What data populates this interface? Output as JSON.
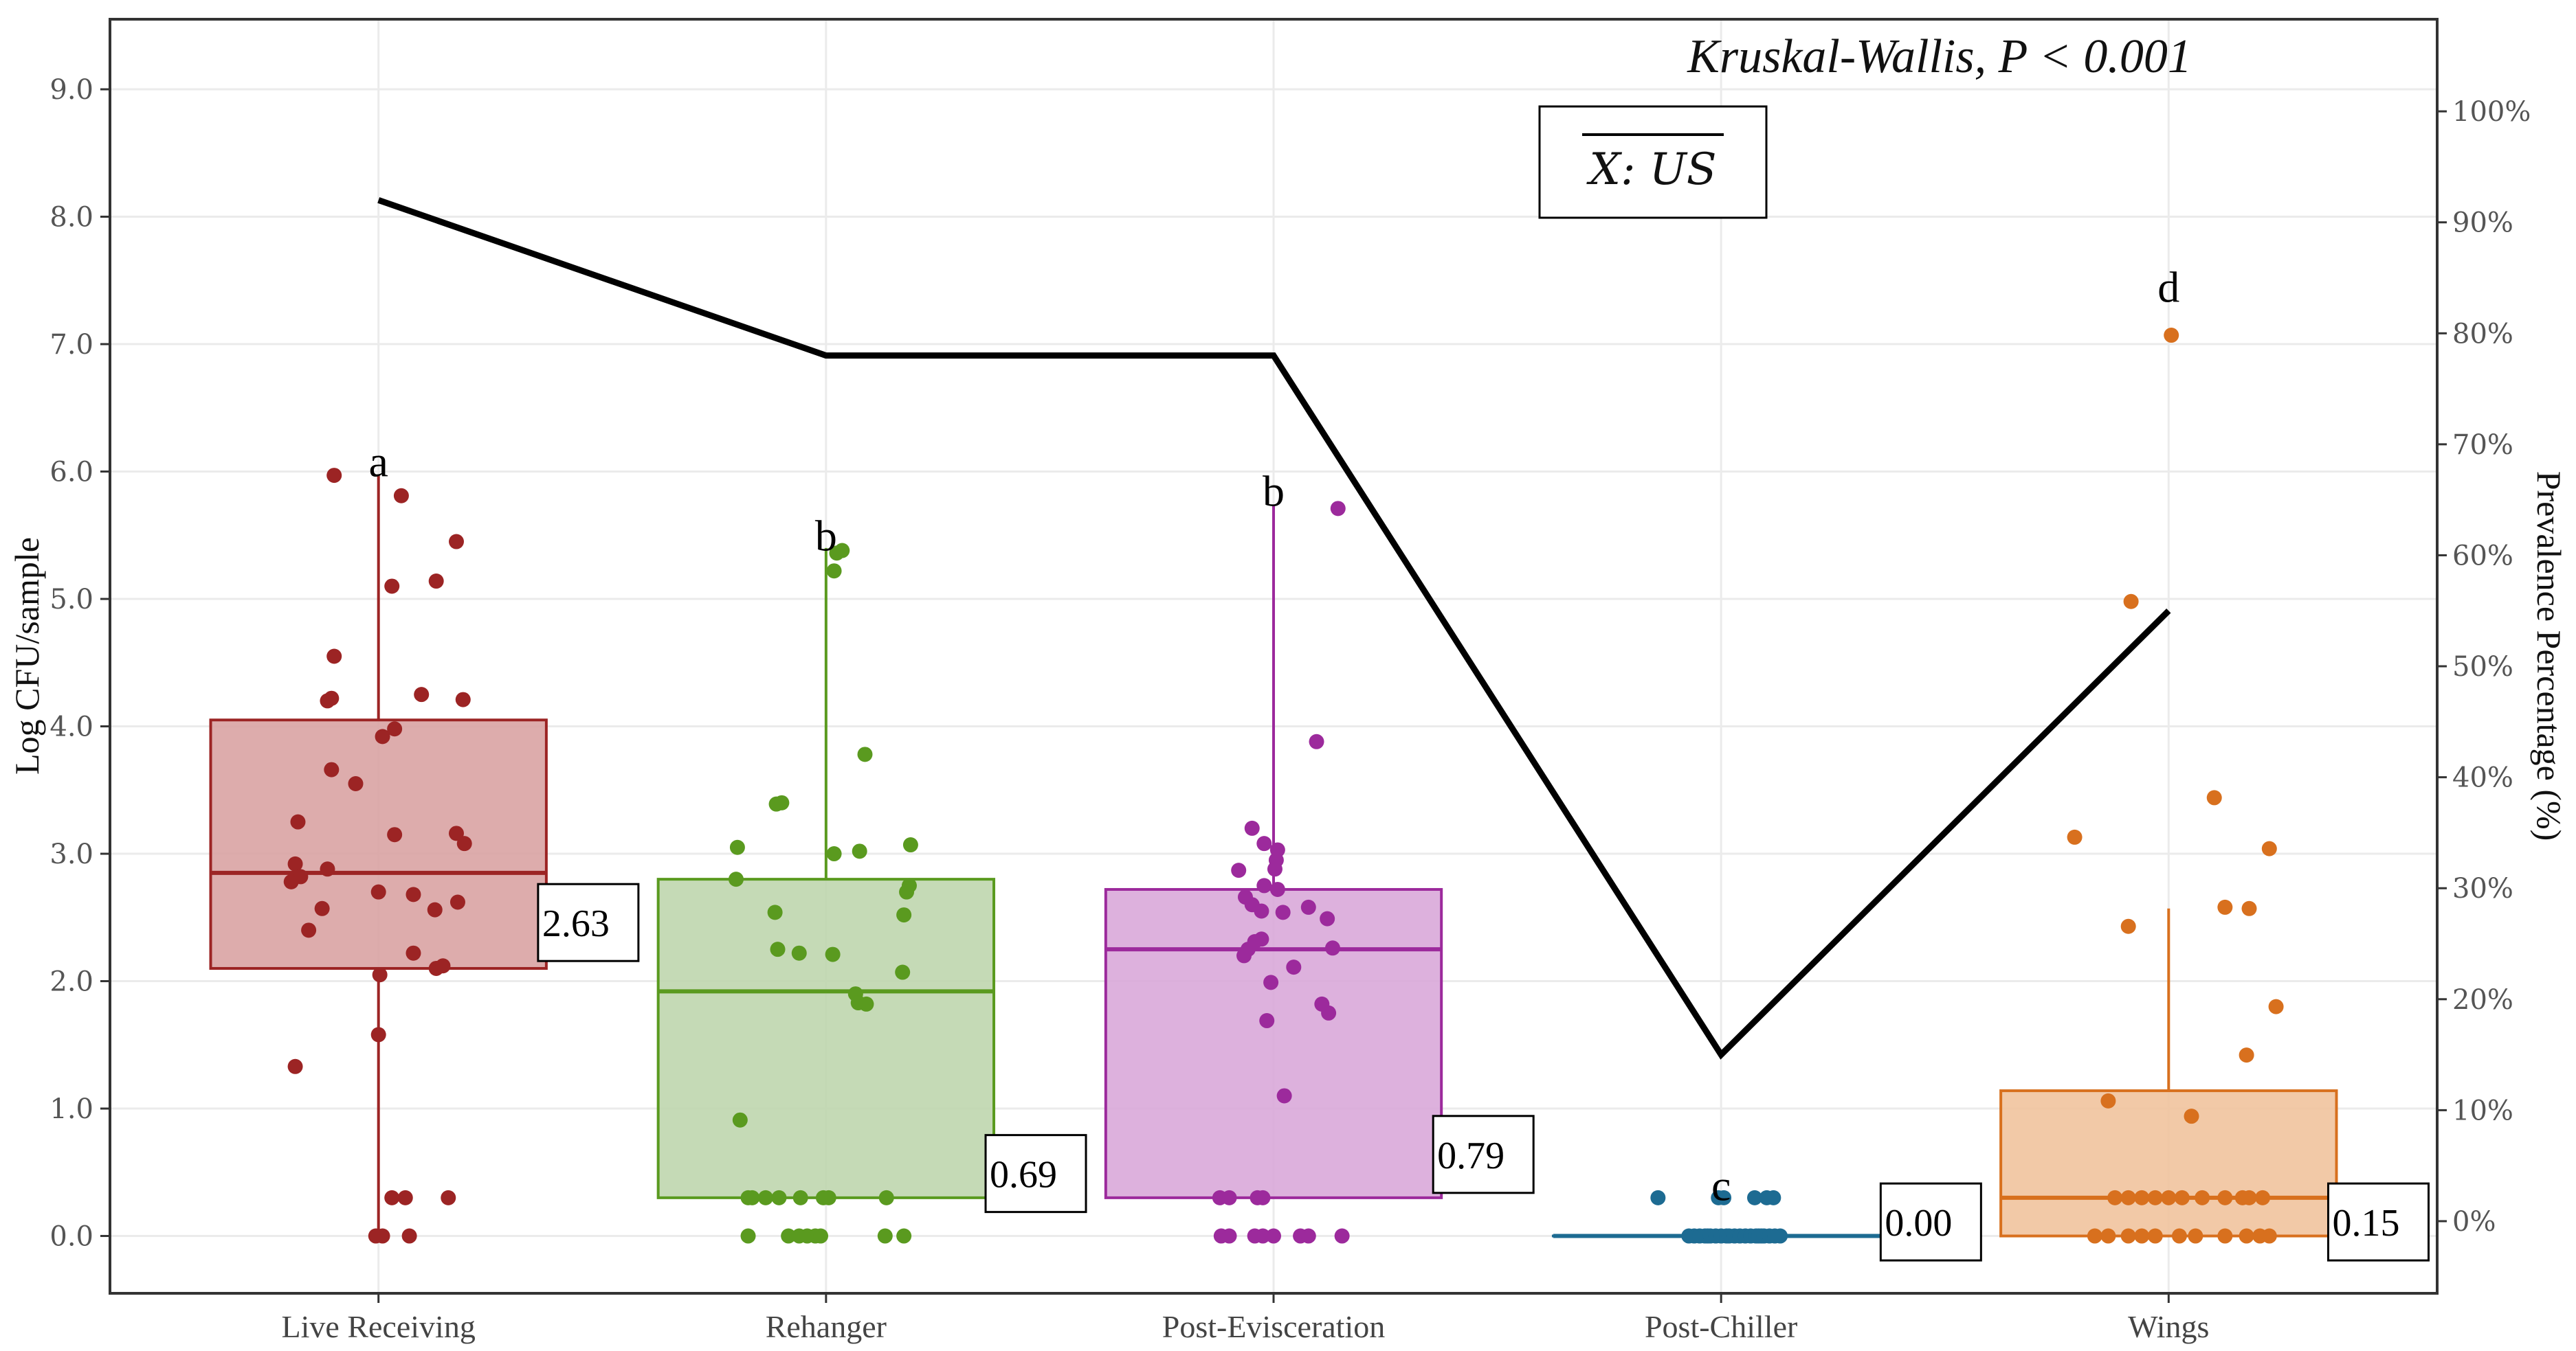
{
  "chart_data": {
    "type": "box",
    "y_left": {
      "label": "Log CFU/sample",
      "lim": [
        -0.45,
        9.55
      ],
      "ticks": [
        "0.0",
        "1.0",
        "2.0",
        "3.0",
        "4.0",
        "5.0",
        "6.0",
        "7.0",
        "8.0",
        "9.0"
      ]
    },
    "y_right": {
      "label": "Prevalence Percentage (%)",
      "lim": [
        -6.5,
        108.3
      ],
      "ticks": [
        "0%",
        "10%",
        "20%",
        "30%",
        "40%",
        "50%",
        "60%",
        "70%",
        "80%",
        "90%",
        "100%"
      ]
    },
    "categories": [
      "Live Receiving",
      "Rehanger",
      "Post-Evisceration",
      "Post-Chiller",
      "Wings"
    ],
    "colors": [
      "#9c2424",
      "#5a9a1f",
      "#9c2a9c",
      "#1d6b92",
      "#d8701e"
    ],
    "fills": [
      "#d9a3a3",
      "#bfd6ae",
      "#d9a9d9",
      "#b3d2e1",
      "#f1c39d"
    ],
    "boxes": [
      {
        "q1": 2.1,
        "median": 2.85,
        "q3": 4.05,
        "whisker_low": 0.0,
        "whisker_high": 5.97
      },
      {
        "q1": 0.3,
        "median": 1.92,
        "q3": 2.8,
        "whisker_low": 0.3,
        "whisker_high": 5.4
      },
      {
        "q1": 0.3,
        "median": 2.25,
        "q3": 2.72,
        "whisker_low": 0.3,
        "whisker_high": 5.73
      },
      {
        "q1": 0.0,
        "median": 0.0,
        "q3": 0.0,
        "whisker_low": 0.0,
        "whisker_high": 0.0
      },
      {
        "q1": 0.0,
        "median": 0.3,
        "q3": 1.14,
        "whisker_low": 0.0,
        "whisker_high": 2.57
      }
    ],
    "means": [
      "2.63",
      "0.69",
      "0.79",
      "0.00",
      "0.15"
    ],
    "mean_label_y": [
      2.46,
      0.49,
      0.64,
      0.11,
      0.11
    ],
    "letters": [
      "a",
      "b",
      "b",
      "c",
      "d"
    ],
    "letter_y": [
      6.08,
      5.5,
      5.85,
      0.4,
      7.45
    ],
    "prevalence": [
      92,
      78,
      78,
      15,
      55
    ],
    "points": [
      [
        [
          -0.33,
          5.97
        ],
        [
          0.17,
          5.81
        ],
        [
          0.58,
          5.45
        ],
        [
          0.43,
          5.14
        ],
        [
          0.1,
          5.1
        ],
        [
          -0.33,
          4.55
        ],
        [
          -0.38,
          4.2
        ],
        [
          -0.35,
          4.22
        ],
        [
          0.32,
          4.25
        ],
        [
          0.63,
          4.21
        ],
        [
          0.12,
          3.98
        ],
        [
          0.03,
          3.92
        ],
        [
          -0.35,
          3.66
        ],
        [
          -0.17,
          3.55
        ],
        [
          -0.6,
          3.25
        ],
        [
          0.12,
          3.15
        ],
        [
          0.58,
          3.16
        ],
        [
          0.64,
          3.08
        ],
        [
          -0.62,
          2.92
        ],
        [
          -0.38,
          2.88
        ],
        [
          -0.58,
          2.82
        ],
        [
          -0.65,
          2.78
        ],
        [
          0.0,
          2.7
        ],
        [
          0.26,
          2.68
        ],
        [
          0.59,
          2.62
        ],
        [
          0.42,
          2.56
        ],
        [
          -0.42,
          2.57
        ],
        [
          -0.52,
          2.4
        ],
        [
          0.26,
          2.22
        ],
        [
          0.43,
          2.1
        ],
        [
          0.48,
          2.12
        ],
        [
          0.01,
          2.05
        ],
        [
          0.0,
          1.58
        ],
        [
          -0.62,
          1.33
        ],
        [
          0.1,
          0.3
        ],
        [
          0.2,
          0.3
        ],
        [
          0.52,
          0.3
        ],
        [
          -0.02,
          0.0
        ],
        [
          0.03,
          0.0
        ],
        [
          0.23,
          0.0
        ]
      ],
      [
        [
          0.12,
          5.38
        ],
        [
          0.08,
          5.36
        ],
        [
          0.06,
          5.22
        ],
        [
          0.29,
          3.78
        ],
        [
          -0.37,
          3.39
        ],
        [
          -0.33,
          3.4
        ],
        [
          0.06,
          3.0
        ],
        [
          0.25,
          3.02
        ],
        [
          -0.66,
          3.05
        ],
        [
          0.63,
          3.07
        ],
        [
          0.62,
          2.75
        ],
        [
          0.6,
          2.7
        ],
        [
          -0.67,
          2.8
        ],
        [
          0.58,
          2.52
        ],
        [
          -0.38,
          2.54
        ],
        [
          -0.36,
          2.25
        ],
        [
          0.05,
          2.21
        ],
        [
          -0.2,
          2.22
        ],
        [
          0.57,
          2.07
        ],
        [
          0.22,
          1.9
        ],
        [
          0.24,
          1.83
        ],
        [
          0.3,
          1.82
        ],
        [
          -0.64,
          0.91
        ],
        [
          -0.58,
          0.3
        ],
        [
          -0.45,
          0.3
        ],
        [
          -0.55,
          0.3
        ],
        [
          -0.35,
          0.3
        ],
        [
          -0.19,
          0.3
        ],
        [
          -0.02,
          0.3
        ],
        [
          0.02,
          0.3
        ],
        [
          0.45,
          0.3
        ],
        [
          -0.58,
          0.0
        ],
        [
          -0.28,
          0.0
        ],
        [
          -0.2,
          0.0
        ],
        [
          -0.14,
          0.0
        ],
        [
          -0.08,
          0.0
        ],
        [
          -0.04,
          0.0
        ],
        [
          0.44,
          0.0
        ],
        [
          0.58,
          0.0
        ]
      ],
      [
        [
          0.48,
          5.71
        ],
        [
          0.32,
          3.88
        ],
        [
          -0.16,
          3.2
        ],
        [
          -0.07,
          3.08
        ],
        [
          0.03,
          3.03
        ],
        [
          0.02,
          2.95
        ],
        [
          -0.26,
          2.87
        ],
        [
          0.01,
          2.88
        ],
        [
          -0.07,
          2.75
        ],
        [
          0.03,
          2.72
        ],
        [
          -0.21,
          2.66
        ],
        [
          -0.16,
          2.6
        ],
        [
          -0.09,
          2.55
        ],
        [
          0.07,
          2.54
        ],
        [
          0.26,
          2.58
        ],
        [
          0.4,
          2.49
        ],
        [
          0.44,
          2.26
        ],
        [
          -0.09,
          2.33
        ],
        [
          -0.14,
          2.31
        ],
        [
          -0.19,
          2.25
        ],
        [
          -0.22,
          2.2
        ],
        [
          0.15,
          2.11
        ],
        [
          -0.02,
          1.99
        ],
        [
          0.36,
          1.82
        ],
        [
          0.41,
          1.75
        ],
        [
          -0.05,
          1.69
        ],
        [
          0.08,
          1.1
        ],
        [
          -0.4,
          0.3
        ],
        [
          -0.33,
          0.3
        ],
        [
          -0.12,
          0.3
        ],
        [
          -0.08,
          0.3
        ],
        [
          -0.39,
          0.0
        ],
        [
          -0.33,
          0.0
        ],
        [
          -0.14,
          0.0
        ],
        [
          -0.08,
          0.0
        ],
        [
          0.0,
          0.0
        ],
        [
          0.2,
          0.0
        ],
        [
          0.26,
          0.0
        ],
        [
          0.51,
          0.0
        ]
      ],
      [
        [
          -0.47,
          0.3
        ],
        [
          -0.02,
          0.3
        ],
        [
          0.02,
          0.3
        ],
        [
          0.25,
          0.3
        ],
        [
          0.34,
          0.3
        ],
        [
          0.39,
          0.3
        ],
        [
          -0.24,
          0.0
        ],
        [
          -0.2,
          0.0
        ],
        [
          -0.16,
          0.0
        ],
        [
          -0.12,
          0.0
        ],
        [
          -0.1,
          0.0
        ],
        [
          -0.08,
          0.0
        ],
        [
          -0.04,
          0.0
        ],
        [
          0.0,
          0.0
        ],
        [
          0.04,
          0.0
        ],
        [
          0.06,
          0.0
        ],
        [
          0.1,
          0.0
        ],
        [
          0.14,
          0.0
        ],
        [
          0.18,
          0.0
        ],
        [
          0.22,
          0.0
        ],
        [
          0.26,
          0.0
        ],
        [
          0.28,
          0.0
        ],
        [
          0.3,
          0.0
        ],
        [
          0.32,
          0.0
        ],
        [
          0.36,
          0.0
        ],
        [
          0.4,
          0.0
        ],
        [
          0.44,
          0.0
        ]
      ],
      [
        [
          0.02,
          7.07
        ],
        [
          -0.28,
          4.98
        ],
        [
          0.34,
          3.44
        ],
        [
          -0.7,
          3.13
        ],
        [
          0.75,
          3.04
        ],
        [
          -0.3,
          2.43
        ],
        [
          0.42,
          2.58
        ],
        [
          0.6,
          2.57
        ],
        [
          0.8,
          1.8
        ],
        [
          0.58,
          1.42
        ],
        [
          -0.45,
          1.06
        ],
        [
          0.17,
          0.94
        ],
        [
          -0.4,
          0.3
        ],
        [
          -0.3,
          0.3
        ],
        [
          -0.2,
          0.3
        ],
        [
          -0.1,
          0.3
        ],
        [
          0.0,
          0.3
        ],
        [
          0.1,
          0.3
        ],
        [
          0.25,
          0.3
        ],
        [
          0.42,
          0.3
        ],
        [
          0.55,
          0.3
        ],
        [
          0.6,
          0.3
        ],
        [
          0.7,
          0.3
        ],
        [
          -0.55,
          0.0
        ],
        [
          -0.45,
          0.0
        ],
        [
          -0.3,
          0.0
        ],
        [
          -0.2,
          0.0
        ],
        [
          -0.1,
          0.0
        ],
        [
          0.08,
          0.0
        ],
        [
          0.2,
          0.0
        ],
        [
          0.42,
          0.0
        ],
        [
          0.58,
          0.0
        ],
        [
          0.68,
          0.0
        ],
        [
          0.75,
          0.0
        ]
      ]
    ],
    "annotation": "Kruskal-Wallis, P < 0.001",
    "legend_label": "X: US",
    "grid": true
  }
}
